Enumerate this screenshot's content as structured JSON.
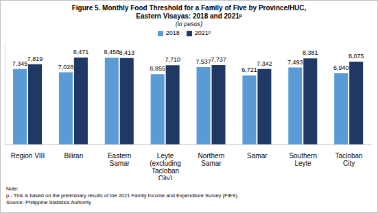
{
  "chart_data": {
    "type": "bar",
    "title": "Figure 5. Monthly Food Threshold for a Family of Five by Province/HUC, Eastern Visayas: 2018 and 2021ᵖ",
    "subtitle": "(in pesos)",
    "categories": [
      "Region VIII",
      "Biliran",
      "Eastern Samar",
      "Leyte (excluding Tacloban City)",
      "Northern Samar",
      "Samar",
      "Southern Leyte",
      "Tacloban City"
    ],
    "series": [
      {
        "name": "2018",
        "color": "#5b9bd5",
        "values": [
          7345,
          7028,
          8458,
          6855,
          7537,
          6721,
          7493,
          6940
        ],
        "value_labels": [
          "7,345",
          "7,028",
          "8,458",
          "6,855",
          "7,537",
          "6,721",
          "7,493",
          "6,940"
        ]
      },
      {
        "name": "2021ᵖ",
        "color": "#1f3864",
        "values": [
          7819,
          8471,
          8413,
          7710,
          7737,
          7342,
          8381,
          8075
        ],
        "value_labels": [
          "7,819",
          "8,471",
          "8,413",
          "7,710",
          "7,737",
          "7,342",
          "8,381",
          "8,075"
        ]
      }
    ],
    "ylim": [
      0,
      10000
    ],
    "grid": false,
    "legend": "top",
    "data_labels": true,
    "tick_labels": "x",
    "annotations": [
      "Note:",
      "p - This is based on the preliminary results of the 2021 Family Income and Expenditure Survey (FIES).",
      "Source: Philippine Statistics Authority"
    ]
  }
}
